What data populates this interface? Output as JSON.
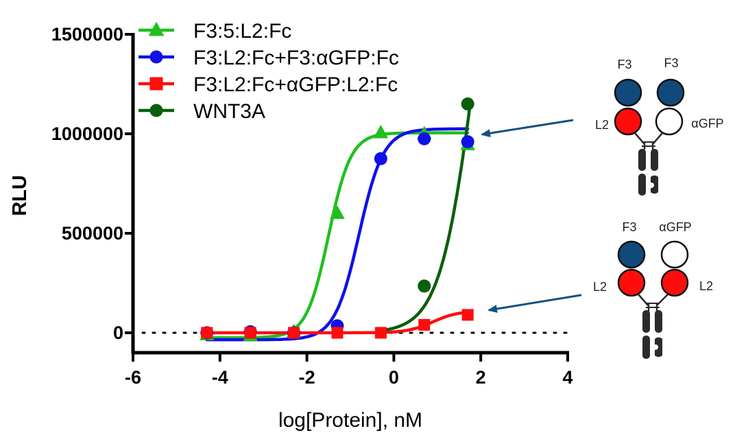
{
  "chart_data": {
    "type": "line",
    "title": "",
    "xlabel": "log[Protein], nM",
    "ylabel": "RLU",
    "xlim": [
      -6,
      4
    ],
    "ylim": [
      -100000,
      1500000
    ],
    "x_ticks": [
      -6,
      -4,
      -2,
      0,
      2,
      4
    ],
    "x_tick_labels": [
      "-6",
      "-4",
      "-2",
      "0",
      "2",
      "4"
    ],
    "y_ticks": [
      0,
      500000,
      1000000,
      1500000
    ],
    "y_tick_labels": [
      "0",
      "500000",
      "1000000",
      "1500000"
    ],
    "baseline": {
      "y": 0,
      "style": "dotted"
    },
    "grid": false,
    "legend_position": "top-left",
    "series": [
      {
        "name": "F3:5:L2:Fc",
        "color": "#1fc01f",
        "marker": "triangle",
        "x": [
          -4.3,
          -3.3,
          -2.3,
          -1.3,
          -0.3,
          0.7,
          1.7
        ],
        "y": [
          -10000,
          -15000,
          5000,
          600000,
          1005000,
          1000000,
          945000
        ],
        "fit": {
          "bottom": -25000,
          "top": 1005000,
          "logEC50": -1.5,
          "hill": 1.7,
          "x_range": [
            -4.3,
            1.7
          ]
        }
      },
      {
        "name": "F3:L2:Fc+F3:αGFP:Fc",
        "color": "#1010e8",
        "marker": "circle",
        "x": [
          -4.3,
          -3.3,
          -2.3,
          -1.3,
          -0.3,
          0.7,
          1.7
        ],
        "y": [
          0,
          5000,
          0,
          35000,
          875000,
          975000,
          960000
        ],
        "fit": {
          "bottom": -35000,
          "top": 1025000,
          "logEC50": -0.8,
          "hill": 1.55,
          "x_range": [
            -4.3,
            1.7
          ]
        }
      },
      {
        "name": "F3:L2:Fc+αGFP:L2:Fc",
        "color": "#ff0d0d",
        "marker": "square",
        "x": [
          -4.3,
          -3.3,
          -2.3,
          -1.3,
          -0.3,
          0.7,
          1.7
        ],
        "y": [
          0,
          0,
          0,
          0,
          0,
          40000,
          90000
        ],
        "fit": {
          "bottom": 0,
          "top": 110000,
          "logEC50": 0.9,
          "hill": 1.5,
          "x_range": [
            -4.3,
            1.7
          ]
        }
      },
      {
        "name": "WNT3A",
        "color": "#0a5f0a",
        "marker": "circle",
        "x": [
          0.7,
          1.7
        ],
        "y": [
          235000,
          1150000
        ],
        "fit": {
          "bottom": 0,
          "top": 2600000,
          "logEC50": 1.85,
          "hill": 1.1,
          "x_range": [
            -0.3,
            1.75
          ]
        }
      }
    ]
  },
  "diagrams": [
    {
      "left_top_label": "F3",
      "right_top_label": "F3",
      "left_side_label": "L2",
      "right_side_label": "αGFP",
      "colors": {
        "left_top": "#114a7a",
        "right_top": "#114a7a",
        "left_bottom": "#ff0d0d",
        "right_bottom": "#ffffff"
      }
    },
    {
      "left_top_label": "F3",
      "right_top_label": "αGFP",
      "left_side_label": "L2",
      "right_side_label": "L2",
      "colors": {
        "left_top": "#114a7a",
        "right_top": "#ffffff",
        "left_bottom": "#ff0d0d",
        "right_bottom": "#ff0d0d"
      }
    }
  ],
  "colors": {
    "axis": "#000000",
    "arrow": "#14507e",
    "fc": "#2b2b2b"
  }
}
